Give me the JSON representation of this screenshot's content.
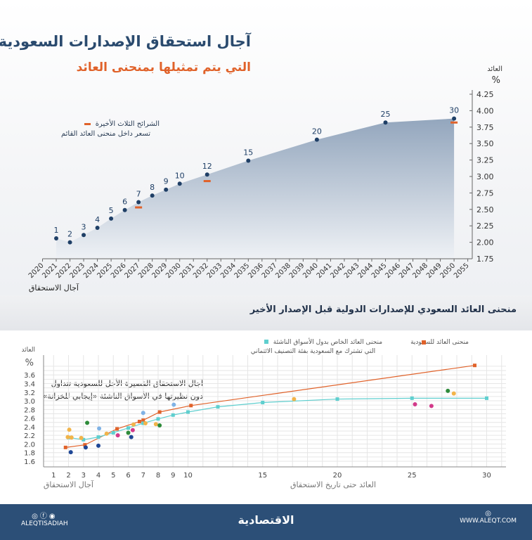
{
  "header": {
    "title": "آجال استحقاق الإصدارات السعودية",
    "subtitle": "التي يتم تمثيلها بمنحنى العائد"
  },
  "top_legend": {
    "line1": "الشرائح الثلاث الأخيرة",
    "line2": "تسعر داخل منحنى العائد القائم",
    "marker_color": "#e0622a"
  },
  "section": {
    "title": "منحنى العائد السعودي للإصدارات الدولية قبل الإصدار الأخير"
  },
  "bottom_legend": {
    "saudi": "منحنى العائد للسعودية",
    "em_line1": "منحنى العائد الخاص بدول الأسواق الناشئة",
    "em_line2": "التي تشترك مع السعودية بفئة التصنيف الائتماني"
  },
  "annotation": {
    "line1": "آجال الاستحقاق القصيرة الأجل للسعودية تتداول",
    "line2": "دون نظيرتها في الأسواق الناشئة «إيجابي للخزانة»"
  },
  "footer": {
    "handle": "ALEQTISADIAH",
    "logo": "الاقتصادية",
    "url": "WWW.ALEQT.COM",
    "social_icons": [
      "instagram-icon",
      "facebook-icon",
      "twitter-icon"
    ],
    "web_icon": "globe-icon"
  },
  "chart_data": [
    {
      "type": "area",
      "ylabel": "العائد",
      "yunit": "%",
      "xlabel": "آجال الاستحقاق",
      "ylim": [
        1.75,
        4.25
      ],
      "yticks": [
        "1.75",
        "2.00",
        "2.25",
        "2.50",
        "2.75",
        "3.00",
        "3.25",
        "3.50",
        "3.75",
        "4.00",
        "4.25"
      ],
      "xticks": [
        "2020",
        "2021",
        "2022",
        "2023",
        "2024",
        "2025",
        "2026",
        "2027",
        "2028",
        "2029",
        "2030",
        "2031",
        "2032",
        "2033",
        "2034",
        "2035",
        "2036",
        "2037",
        "2038",
        "2039",
        "2040",
        "2041",
        "2042",
        "2043",
        "2044",
        "2045",
        "2046",
        "2047",
        "2048",
        "2049",
        "2050",
        "2055"
      ],
      "series": [
        {
          "x": [
            "2021",
            "2022",
            "2023",
            "2024",
            "2025",
            "2026",
            "2027",
            "2028",
            "2029",
            "2030",
            "2032",
            "2035",
            "2040",
            "2045",
            "2050"
          ],
          "values": [
            2.06,
            2.0,
            2.11,
            2.22,
            2.36,
            2.49,
            2.61,
            2.71,
            2.8,
            2.89,
            3.03,
            3.24,
            3.56,
            3.82,
            3.88
          ],
          "labels": [
            "1",
            "2",
            "3",
            "4",
            "5",
            "6",
            "7",
            "8",
            "9",
            "10",
            "12",
            "15",
            "20",
            "25",
            "30"
          ],
          "color": "#1f3f66"
        }
      ],
      "markers": {
        "x": [
          "2027",
          "2032",
          "2050"
        ],
        "values": [
          2.53,
          2.93,
          3.82
        ],
        "color": "#e0622a"
      }
    },
    {
      "type": "line",
      "ylabel": "العائد",
      "yunit": "%",
      "xlabel": "آجال الاستحقاق",
      "xlabel2": "العائد حتى تاريخ الاستحقاق",
      "xlim": [
        0,
        31.5
      ],
      "ylim": [
        1.5,
        3.85
      ],
      "yticks": [
        1.6,
        1.8,
        2.0,
        2.2,
        2.4,
        2.6,
        2.8,
        3.0,
        3.2,
        3.4,
        3.6
      ],
      "xticks": [
        1,
        2,
        3,
        4,
        5,
        6,
        7,
        8,
        9,
        10,
        15,
        20,
        25,
        30
      ],
      "grid": true,
      "series": [
        {
          "name": "منحنى العائد للسعودية",
          "color": "#e0622a",
          "points": [
            [
              1.8,
              1.92
            ],
            [
              3.1,
              1.98
            ],
            [
              5.25,
              2.35
            ],
            [
              6.75,
              2.52
            ],
            [
              7.0,
              2.55
            ],
            [
              8.1,
              2.74
            ],
            [
              10.2,
              2.89
            ],
            [
              29.2,
              3.82
            ]
          ]
        },
        {
          "name": "منحنى العائد الخاص بدول الأسواق الناشئة",
          "color": "#5fcfcf",
          "points": [
            [
              2,
              2.15
            ],
            [
              3,
              2.1
            ],
            [
              4,
              2.16
            ],
            [
              5,
              2.26
            ],
            [
              6,
              2.37
            ],
            [
              7,
              2.48
            ],
            [
              8,
              2.58
            ],
            [
              9,
              2.67
            ],
            [
              10,
              2.74
            ],
            [
              12,
              2.86
            ],
            [
              15,
              2.96
            ],
            [
              20,
              3.04
            ],
            [
              25,
              3.06
            ],
            [
              30,
              3.06
            ]
          ]
        }
      ],
      "scatter": [
        {
          "color": "#f2b44a",
          "points": [
            [
              1.95,
              2.16
            ],
            [
              2.05,
              2.33
            ],
            [
              2.2,
              2.15
            ],
            [
              2.85,
              2.14
            ],
            [
              4.55,
              2.24
            ],
            [
              6.35,
              2.45
            ],
            [
              7.15,
              2.48
            ],
            [
              7.85,
              2.46
            ],
            [
              17.1,
              3.04
            ],
            [
              27.8,
              3.17
            ]
          ]
        },
        {
          "color": "#7fb2e5",
          "points": [
            [
              4.05,
              2.36
            ],
            [
              7.0,
              2.72
            ],
            [
              9.05,
              2.91
            ]
          ]
        },
        {
          "color": "#2e8b3a",
          "points": [
            [
              3.25,
              2.49
            ],
            [
              6.0,
              2.26
            ],
            [
              8.1,
              2.43
            ],
            [
              27.4,
              3.23
            ]
          ]
        },
        {
          "color": "#1f4796",
          "points": [
            [
              2.15,
              1.81
            ],
            [
              3.15,
              1.92
            ],
            [
              4.0,
              1.96
            ],
            [
              6.2,
              2.16
            ]
          ]
        },
        {
          "color": "#d23a8a",
          "points": [
            [
              5.3,
              2.2
            ],
            [
              6.3,
              2.32
            ],
            [
              25.2,
              2.92
            ],
            [
              26.3,
              2.88
            ]
          ]
        }
      ]
    }
  ]
}
